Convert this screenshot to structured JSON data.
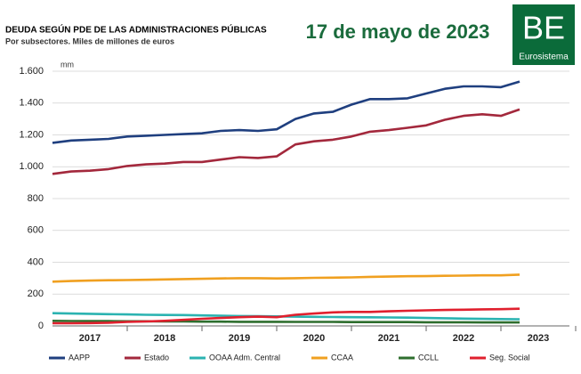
{
  "chart_data": {
    "type": "line",
    "title": "DEUDA SEGÚN PDE DE LAS ADMINISTRACIONES PÚBLICAS",
    "subtitle": "Por subsectores. Miles de millones de euros",
    "date": "17 de mayo de 2023",
    "logo": "BE",
    "logo_caption": "Eurosistema",
    "y_unit": "mm",
    "x": [
      2017,
      2017.25,
      2017.5,
      2017.75,
      2018,
      2018.25,
      2018.5,
      2018.75,
      2019,
      2019.25,
      2019.5,
      2019.75,
      2020,
      2020.25,
      2020.5,
      2020.75,
      2021,
      2021.25,
      2021.5,
      2021.75,
      2022,
      2022.25,
      2022.5,
      2022.75,
      2023,
      2023.25
    ],
    "xlim": [
      2017,
      2024
    ],
    "xticks": [
      {
        "value": 2017.5,
        "label": "2017"
      },
      {
        "value": 2018.5,
        "label": "2018"
      },
      {
        "value": 2019.5,
        "label": "2019"
      },
      {
        "value": 2020.5,
        "label": "2020"
      },
      {
        "value": 2021.5,
        "label": "2021"
      },
      {
        "value": 2022.5,
        "label": "2022"
      },
      {
        "value": 2023.5,
        "label": "2023"
      }
    ],
    "ylim": [
      0,
      1600
    ],
    "yticks": [
      0,
      200,
      400,
      600,
      800,
      {
        "value": 1000,
        "label": "1.000"
      },
      {
        "value": 1200,
        "label": "1.200"
      },
      {
        "value": 1400,
        "label": "1.400"
      },
      {
        "value": 1600,
        "label": "1.600"
      }
    ],
    "grid": true,
    "series": [
      {
        "name": "AAPP",
        "color": "#1f3f7f",
        "values": [
          1150,
          1165,
          1170,
          1175,
          1190,
          1195,
          1200,
          1205,
          1210,
          1225,
          1230,
          1225,
          1235,
          1300,
          1335,
          1345,
          1390,
          1425,
          1425,
          1430,
          1460,
          1490,
          1505,
          1505,
          1500,
          1535
        ]
      },
      {
        "name": "Estado",
        "color": "#a3283c",
        "values": [
          955,
          970,
          975,
          985,
          1005,
          1015,
          1020,
          1030,
          1030,
          1045,
          1060,
          1055,
          1065,
          1140,
          1160,
          1170,
          1190,
          1220,
          1230,
          1245,
          1260,
          1295,
          1320,
          1330,
          1320,
          1360
        ]
      },
      {
        "name": "OOAA Adm. Central",
        "color": "#2bb3b1",
        "values": [
          80,
          78,
          76,
          74,
          72,
          70,
          69,
          68,
          66,
          64,
          62,
          61,
          60,
          58,
          57,
          56,
          55,
          54,
          53,
          52,
          50,
          48,
          46,
          44,
          43,
          42
        ]
      },
      {
        "name": "CCAA",
        "color": "#f0a020",
        "values": [
          278,
          282,
          285,
          287,
          288,
          290,
          292,
          294,
          296,
          298,
          300,
          300,
          298,
          300,
          302,
          303,
          305,
          308,
          310,
          312,
          313,
          315,
          316,
          318,
          318,
          322
        ]
      },
      {
        "name": "CCLL",
        "color": "#2e6e2e",
        "values": [
          32,
          31,
          30,
          30,
          29,
          29,
          28,
          28,
          27,
          27,
          26,
          26,
          26,
          25,
          25,
          25,
          24,
          24,
          24,
          24,
          23,
          23,
          23,
          22,
          22,
          22
        ]
      },
      {
        "name": "Seg. Social",
        "color": "#e0202e",
        "values": [
          17,
          17,
          18,
          20,
          25,
          28,
          32,
          38,
          45,
          50,
          55,
          58,
          55,
          70,
          78,
          85,
          88,
          88,
          92,
          95,
          98,
          100,
          102,
          104,
          105,
          108
        ]
      }
    ]
  }
}
